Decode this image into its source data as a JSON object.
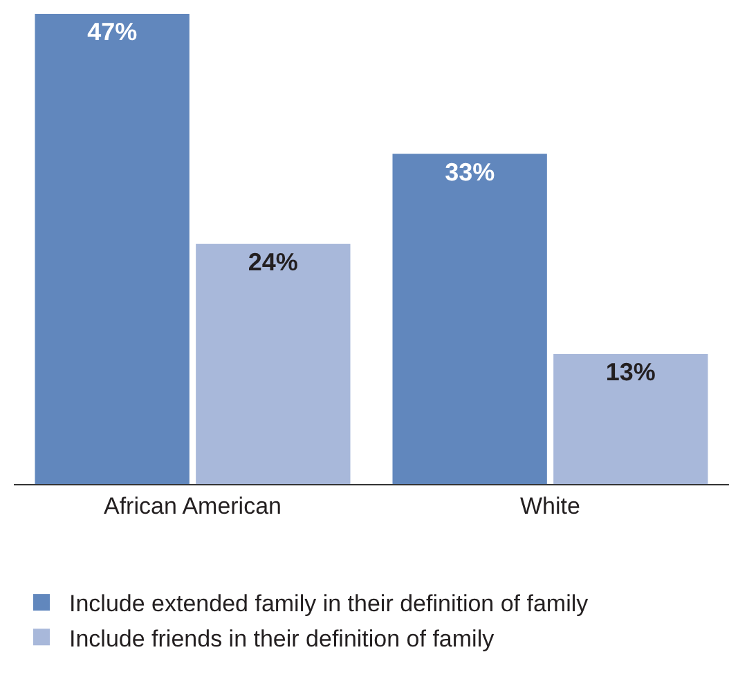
{
  "chart_data": {
    "type": "bar",
    "categories": [
      "African American",
      "White"
    ],
    "series": [
      {
        "name": "Include extended family in their definition of family",
        "color": "#6187bd",
        "values": [
          47,
          33
        ],
        "value_labels": [
          "47%",
          "33%"
        ]
      },
      {
        "name": "Include friends in their definition of family",
        "color": "#a8b8da",
        "values": [
          24,
          13
        ],
        "value_labels": [
          "24%",
          "13%"
        ]
      }
    ],
    "legend": "bottom",
    "grid": false
  }
}
